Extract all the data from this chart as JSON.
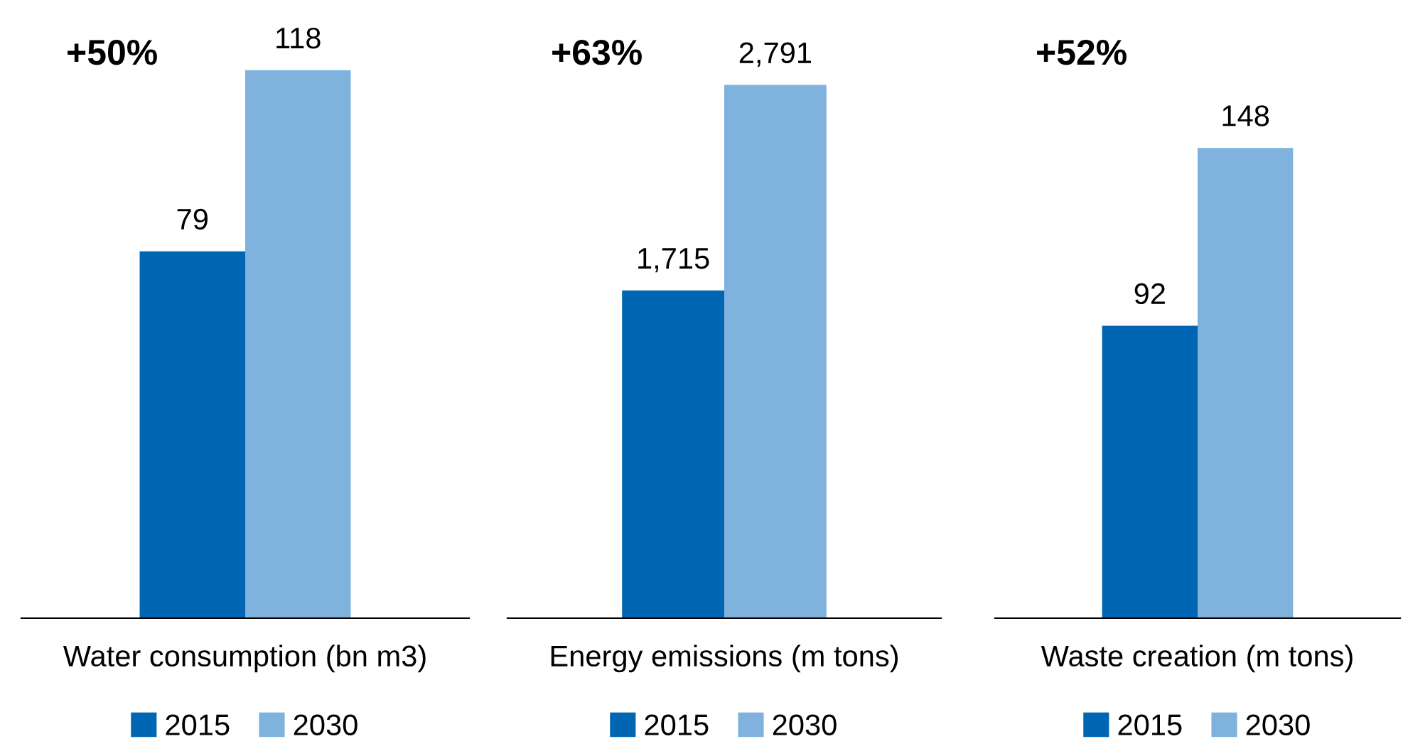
{
  "chart_data": [
    {
      "type": "bar",
      "categories": [
        null
      ],
      "xlabel": "Water consumption (bn m3)",
      "annotations": [
        "+50%"
      ],
      "legend": "bottom",
      "series": [
        {
          "name": "2015",
          "color": "#0066b3",
          "values": [
            79
          ],
          "value_labels": [
            "79"
          ]
        },
        {
          "name": "2030",
          "color": "#7fb2dc",
          "values": [
            118
          ],
          "value_labels": [
            "118"
          ]
        }
      ]
    },
    {
      "type": "bar",
      "categories": [
        null
      ],
      "xlabel": "Energy emissions (m tons)",
      "annotations": [
        "+63%"
      ],
      "legend": "bottom",
      "series": [
        {
          "name": "2015",
          "color": "#0066b3",
          "values": [
            1715
          ],
          "value_labels": [
            "1,715"
          ]
        },
        {
          "name": "2030",
          "color": "#7fb2dc",
          "values": [
            2791
          ],
          "value_labels": [
            "2,791"
          ]
        }
      ]
    },
    {
      "type": "bar",
      "categories": [
        null
      ],
      "xlabel": "Waste creation (m tons)",
      "annotations": [
        "+52%"
      ],
      "legend": "bottom",
      "series": [
        {
          "name": "2015",
          "color": "#0066b3",
          "values": [
            92
          ],
          "value_labels": [
            "92"
          ]
        },
        {
          "name": "2030",
          "color": "#7fb2dc",
          "values": [
            148
          ],
          "value_labels": [
            "148"
          ]
        }
      ]
    }
  ]
}
